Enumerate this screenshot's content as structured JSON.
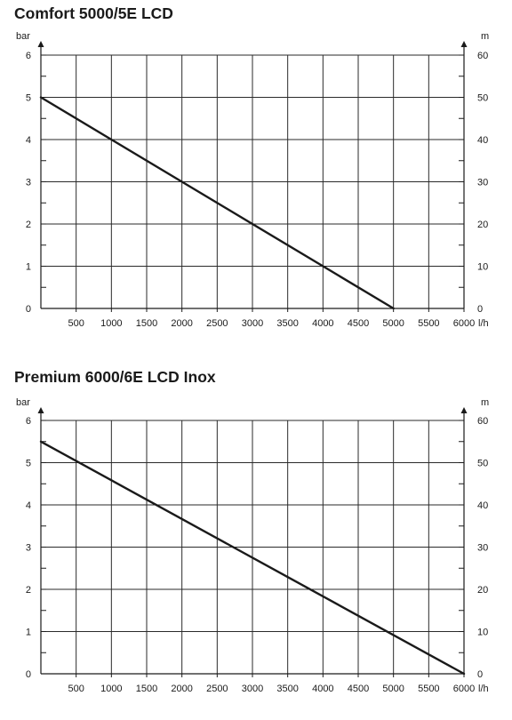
{
  "chart_data": [
    {
      "type": "line",
      "title": "Comfort 5000/5E LCD",
      "left_unit": "bar",
      "right_unit": "m",
      "x_unit": "l/h",
      "xlim": [
        0,
        6000
      ],
      "ylim_left": [
        0,
        6
      ],
      "ylim_right": [
        0,
        60
      ],
      "x_ticks": [
        500,
        1000,
        1500,
        2000,
        2500,
        3000,
        3500,
        4000,
        4500,
        5000,
        5500,
        6000
      ],
      "x_tick_labels": [
        "500",
        "1000",
        "1500",
        "2000",
        "2500",
        "3000",
        "3500",
        "4000",
        "4500",
        "5000",
        "5500",
        "6000"
      ],
      "y_left_ticks": [
        0,
        1,
        2,
        3,
        4,
        5,
        6
      ],
      "y_left_tick_labels": [
        "0",
        "1",
        "2",
        "3",
        "4",
        "5",
        "6"
      ],
      "y_right_ticks": [
        0,
        10,
        20,
        30,
        40,
        50,
        60
      ],
      "y_right_tick_labels": [
        "0",
        "10",
        "20",
        "30",
        "40",
        "50",
        "60"
      ],
      "grid": true,
      "series": [
        {
          "x": [
            0,
            5000
          ],
          "y": [
            5,
            0
          ]
        }
      ]
    },
    {
      "type": "line",
      "title": "Premium 6000/6E LCD Inox",
      "left_unit": "bar",
      "right_unit": "m",
      "x_unit": "l/h",
      "xlim": [
        0,
        6000
      ],
      "ylim_left": [
        0,
        6
      ],
      "ylim_right": [
        0,
        60
      ],
      "x_ticks": [
        500,
        1000,
        1500,
        2000,
        2500,
        3000,
        3500,
        4000,
        4500,
        5000,
        5500,
        6000
      ],
      "x_tick_labels": [
        "500",
        "1000",
        "1500",
        "2000",
        "2500",
        "3000",
        "3500",
        "4000",
        "4500",
        "5000",
        "5500",
        "6000"
      ],
      "y_left_ticks": [
        0,
        1,
        2,
        3,
        4,
        5,
        6
      ],
      "y_left_tick_labels": [
        "0",
        "1",
        "2",
        "3",
        "4",
        "5",
        "6"
      ],
      "y_right_ticks": [
        0,
        10,
        20,
        30,
        40,
        50,
        60
      ],
      "y_right_tick_labels": [
        "0",
        "10",
        "20",
        "30",
        "40",
        "50",
        "60"
      ],
      "grid": true,
      "series": [
        {
          "x": [
            0,
            6000
          ],
          "y": [
            5.5,
            0
          ]
        }
      ]
    }
  ]
}
